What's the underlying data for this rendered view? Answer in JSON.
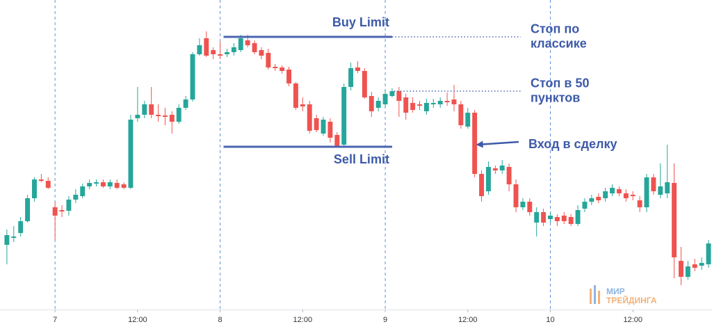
{
  "chart_data": {
    "type": "candlestick",
    "x": [
      -7,
      -6,
      -5,
      -4,
      -3,
      -2,
      -1,
      0,
      1,
      2,
      3,
      4,
      5,
      6,
      7,
      8,
      9,
      10,
      11,
      12,
      13,
      14,
      15,
      16,
      17,
      18,
      19,
      20,
      21,
      22,
      23,
      24,
      25,
      26,
      27,
      28,
      29,
      30,
      31,
      32,
      33,
      34,
      35,
      36,
      37,
      38,
      39,
      40,
      41,
      42,
      43,
      44,
      45,
      46,
      47,
      48,
      49,
      50,
      51,
      52,
      53,
      54,
      55,
      56,
      57,
      58,
      59,
      60,
      61,
      62,
      63,
      64,
      65,
      66,
      67,
      68,
      69,
      70,
      71,
      72,
      73,
      74,
      75,
      76,
      77,
      78,
      79,
      80,
      81,
      82,
      83,
      84,
      85,
      86,
      87,
      88,
      89,
      90,
      91,
      92,
      93,
      94,
      95
    ],
    "open": [
      98,
      108,
      115,
      132,
      165,
      192,
      190,
      152,
      148,
      147,
      163,
      168,
      182,
      186,
      188,
      182,
      187,
      185,
      180,
      280,
      285,
      300,
      285,
      284,
      285,
      275,
      295,
      307,
      372,
      395,
      378,
      372,
      372,
      375,
      378,
      392,
      388,
      378,
      374,
      354,
      353,
      350,
      330,
      300,
      300,
      280,
      258,
      275,
      256,
      242,
      325,
      353,
      348,
      312,
      295,
      300,
      312,
      319,
      310,
      302,
      300,
      290,
      300,
      300,
      305,
      307,
      300,
      268,
      288,
      200,
      175,
      208,
      205,
      210,
      185,
      152,
      160,
      130,
      145,
      135,
      138,
      140,
      138,
      128,
      150,
      160,
      167,
      165,
      172,
      178,
      172,
      170,
      162,
      152,
      195,
      170,
      172,
      187,
      75,
      52,
      70,
      68,
      70
    ],
    "high": [
      120,
      125,
      138,
      170,
      195,
      200,
      195,
      160,
      155,
      168,
      178,
      186,
      192,
      192,
      192,
      192,
      192,
      188,
      285,
      325,
      305,
      325,
      300,
      295,
      290,
      300,
      312,
      375,
      395,
      405,
      382,
      390,
      380,
      388,
      400,
      400,
      392,
      382,
      380,
      358,
      356,
      354,
      332,
      310,
      305,
      285,
      282,
      280,
      260,
      330,
      360,
      362,
      352,
      318,
      310,
      322,
      323,
      325,
      315,
      310,
      305,
      308,
      308,
      310,
      317,
      328,
      305,
      295,
      292,
      205,
      218,
      212,
      220,
      215,
      192,
      165,
      165,
      152,
      150,
      145,
      142,
      145,
      142,
      155,
      165,
      170,
      172,
      180,
      185,
      182,
      178,
      175,
      168,
      200,
      200,
      215,
      242,
      215,
      95,
      75,
      78,
      80,
      105
    ],
    "low": [
      70,
      102,
      110,
      130,
      160,
      188,
      178,
      105,
      138,
      140,
      158,
      165,
      178,
      182,
      180,
      178,
      178,
      178,
      178,
      275,
      280,
      280,
      275,
      270,
      258,
      272,
      292,
      304,
      370,
      368,
      365,
      365,
      368,
      370,
      375,
      382,
      372,
      365,
      350,
      348,
      344,
      326,
      292,
      290,
      258,
      260,
      255,
      245,
      238,
      238,
      320,
      345,
      308,
      282,
      290,
      295,
      310,
      282,
      278,
      288,
      292,
      285,
      295,
      295,
      298,
      290,
      265,
      265,
      195,
      160,
      170,
      200,
      200,
      175,
      145,
      148,
      140,
      110,
      125,
      130,
      125,
      128,
      125,
      125,
      145,
      155,
      158,
      160,
      168,
      168,
      160,
      162,
      145,
      145,
      170,
      165,
      165,
      50,
      40,
      48,
      60,
      62,
      65
    ],
    "close": [
      112,
      110,
      132,
      165,
      192,
      190,
      180,
      140,
      146,
      163,
      170,
      182,
      187,
      188,
      182,
      188,
      180,
      180,
      278,
      285,
      300,
      285,
      283,
      282,
      275,
      295,
      307,
      372,
      385,
      370,
      372,
      370,
      375,
      382,
      395,
      385,
      375,
      370,
      353,
      352,
      348,
      330,
      295,
      297,
      262,
      263,
      278,
      252,
      240,
      325,
      352,
      348,
      310,
      290,
      305,
      315,
      319,
      305,
      288,
      292,
      298,
      302,
      302,
      305,
      303,
      300,
      270,
      288,
      200,
      168,
      210,
      205,
      212,
      185,
      152,
      160,
      145,
      145,
      130,
      140,
      132,
      132,
      128,
      148,
      160,
      165,
      162,
      175,
      180,
      172,
      165,
      168,
      152,
      195,
      175,
      182,
      188,
      80,
      52,
      67,
      65,
      72,
      100
    ],
    "up_color": "#26a69a",
    "down_color": "#ef5350",
    "xlim": [
      -8,
      95.5
    ],
    "ylim": [
      5,
      450
    ],
    "xticks": [
      {
        "value": 0,
        "label": "7"
      },
      {
        "value": 12,
        "label": "12:00"
      },
      {
        "value": 24,
        "label": "8"
      },
      {
        "value": 36,
        "label": "12:00"
      },
      {
        "value": 48,
        "label": "9"
      },
      {
        "value": 60,
        "label": "12:00"
      },
      {
        "value": 72,
        "label": "10"
      },
      {
        "value": 84,
        "label": "12:00"
      }
    ],
    "annotations": [
      {
        "text": [
          "Buy Limit"
        ],
        "value": 397,
        "x": [
          24.5,
          49
        ],
        "style": "solid",
        "color": "#4a64b0"
      },
      {
        "text": [
          "Sell Limit"
        ],
        "value": 239,
        "x": [
          24.5,
          49
        ],
        "style": "solid",
        "color": "#4a64b0"
      },
      {
        "text": [
          "Стоп по",
          "классике"
        ],
        "value": 397,
        "x": [
          49,
          67.7
        ],
        "style": "dotted",
        "color": "#4a64b0"
      },
      {
        "text": [
          "Стоп в 50",
          "пунктов"
        ],
        "value": 319,
        "x": [
          49.3,
          67.7
        ],
        "style": "dotted",
        "color": "#4a64b0"
      },
      {
        "text": [
          "Вход в сделку"
        ],
        "value": 242,
        "x": [
          61.4,
          67.4
        ],
        "style": "arrow",
        "color": "#3d5aa8"
      }
    ],
    "watermark": [
      "МИР",
      "ТРЕЙДИНГА"
    ]
  }
}
